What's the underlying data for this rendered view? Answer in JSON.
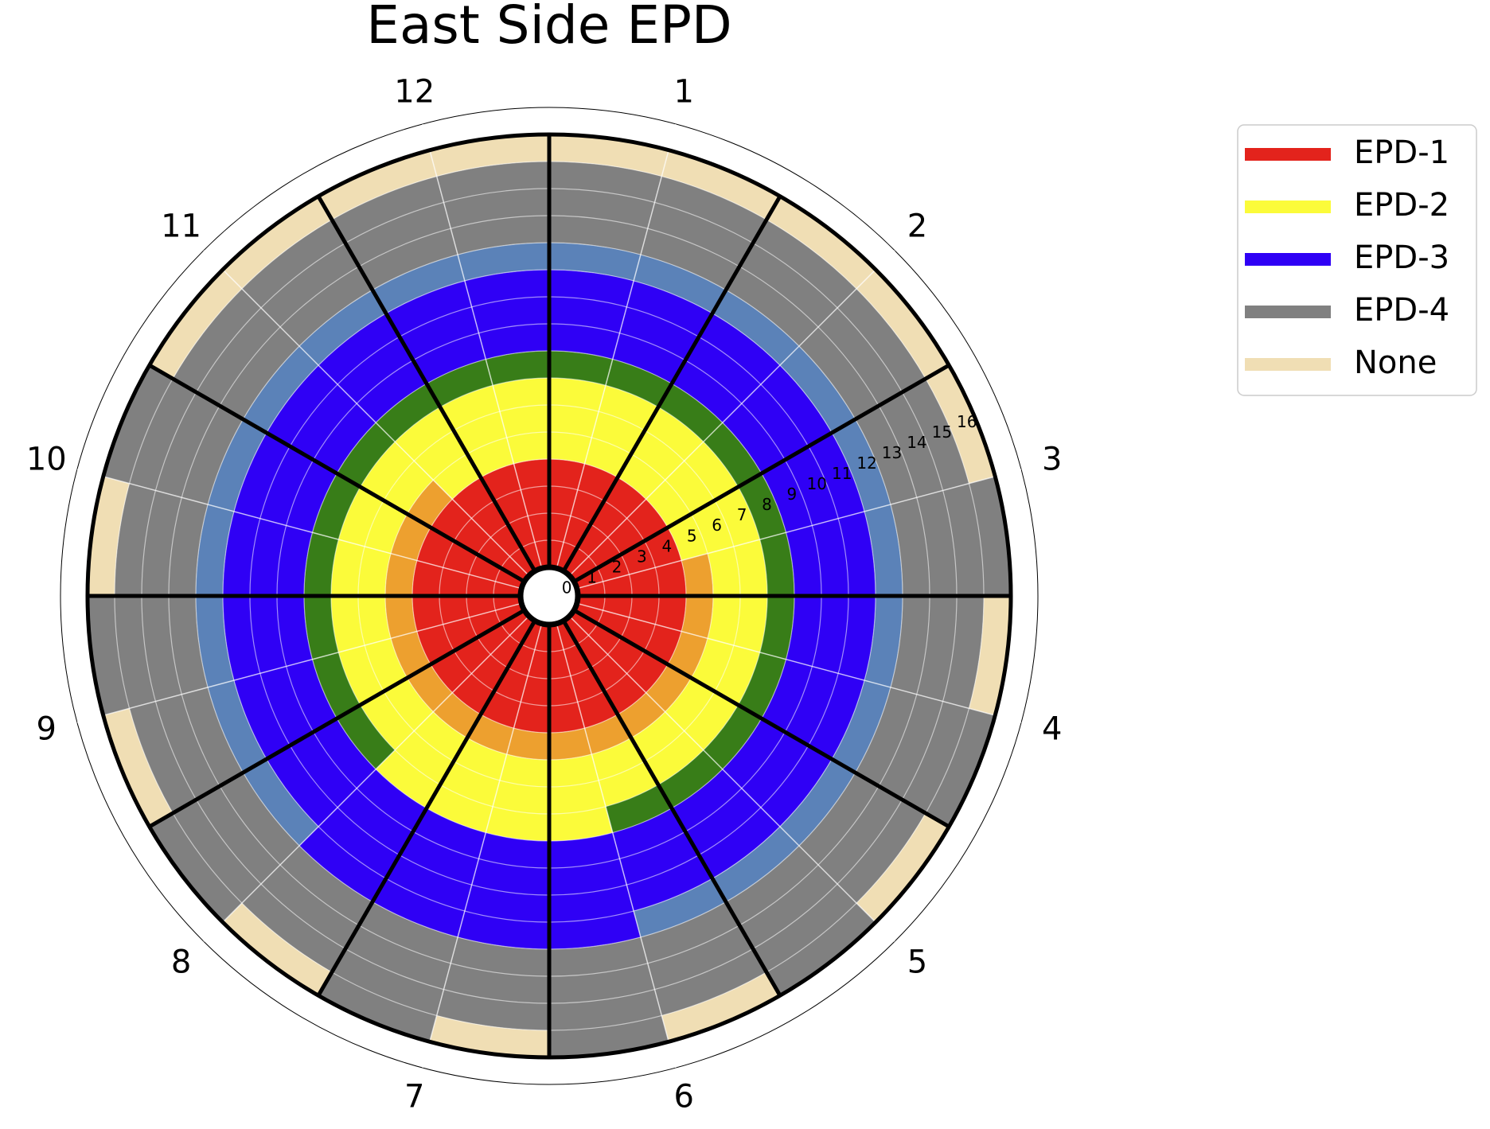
{
  "chart_data": {
    "type": "polar-stacked-bar",
    "title": "East Side EPD",
    "categories": [
      null,
      null,
      null,
      null,
      null,
      null,
      null,
      null,
      null,
      null,
      null,
      null,
      null,
      null,
      null,
      null,
      null,
      null,
      null,
      null,
      null,
      null,
      null,
      null
    ],
    "xlim": [
      0,
      360
    ],
    "xticks": [
      {
        "value": 345,
        "label": "12"
      },
      {
        "value": 15,
        "label": "1"
      },
      {
        "value": 45,
        "label": "2"
      },
      {
        "value": 75,
        "label": "3"
      },
      {
        "value": 105,
        "label": "4"
      },
      {
        "value": 135,
        "label": "5"
      },
      {
        "value": 165,
        "label": "6"
      },
      {
        "value": 195,
        "label": "7"
      },
      {
        "value": 225,
        "label": "8"
      },
      {
        "value": 255,
        "label": "9"
      },
      {
        "value": 285,
        "label": "10"
      },
      {
        "value": 315,
        "label": "11"
      }
    ],
    "ylim": [
      0,
      17
    ],
    "yticks": [
      0,
      1,
      2,
      3,
      4,
      5,
      6,
      7,
      8,
      9,
      10,
      11,
      12,
      13,
      14,
      15,
      16
    ],
    "grid": true,
    "legend": "outside upper right",
    "series": [
      {
        "name": "EPD-1",
        "color": "#e3231c",
        "values": [
          4,
          4,
          4,
          4,
          4,
          4,
          4,
          4,
          4,
          4,
          4,
          4,
          4,
          4,
          4,
          4,
          4,
          4,
          4,
          4,
          4,
          4,
          4,
          4
        ]
      },
      {
        "color": "#eda02f",
        "values": [
          0,
          0,
          0,
          0,
          0,
          1,
          1,
          1,
          1,
          1,
          1,
          1,
          1,
          1,
          1,
          1,
          1,
          1,
          1,
          1,
          1,
          0,
          0,
          0
        ]
      },
      {
        "name": "EPD-2",
        "color": "#fbfb3a",
        "values": [
          3,
          3,
          3,
          3,
          3,
          2,
          2,
          2,
          2,
          2,
          2,
          3,
          3,
          3,
          3,
          2,
          2,
          2,
          2,
          2,
          2,
          3,
          3,
          3
        ]
      },
      {
        "color": "#387d18",
        "values": [
          1,
          1,
          1,
          1,
          1,
          1,
          1,
          1,
          1,
          1,
          1,
          0,
          0,
          0,
          0,
          1,
          1,
          1,
          1,
          1,
          1,
          1,
          1,
          1
        ]
      },
      {
        "name": "EPD-3",
        "color": "#2f00f5",
        "values": [
          3,
          3,
          3,
          3,
          3,
          3,
          3,
          3,
          3,
          3,
          3,
          4,
          4,
          4,
          4,
          3,
          3,
          3,
          3,
          3,
          3,
          3,
          3,
          3
        ]
      },
      {
        "color": "#5b82b8",
        "values": [
          1,
          1,
          1,
          1,
          1,
          1,
          1,
          1,
          1,
          1,
          1,
          0,
          0,
          0,
          0,
          1,
          1,
          1,
          1,
          1,
          1,
          1,
          1,
          1
        ]
      },
      {
        "name": "EPD-4",
        "color": "#808080",
        "values": [
          3,
          3,
          3,
          3,
          3,
          4,
          3,
          4,
          3,
          4,
          3,
          4,
          3,
          4,
          3,
          4,
          3,
          4,
          3,
          4,
          3,
          3,
          3,
          3
        ]
      },
      {
        "name": "None",
        "color": "#f0deb4",
        "values": [
          1,
          1,
          1,
          1,
          1,
          0,
          1,
          0,
          1,
          0,
          1,
          0,
          1,
          0,
          1,
          0,
          1,
          0,
          1,
          0,
          1,
          1,
          1,
          1
        ]
      }
    ]
  }
}
